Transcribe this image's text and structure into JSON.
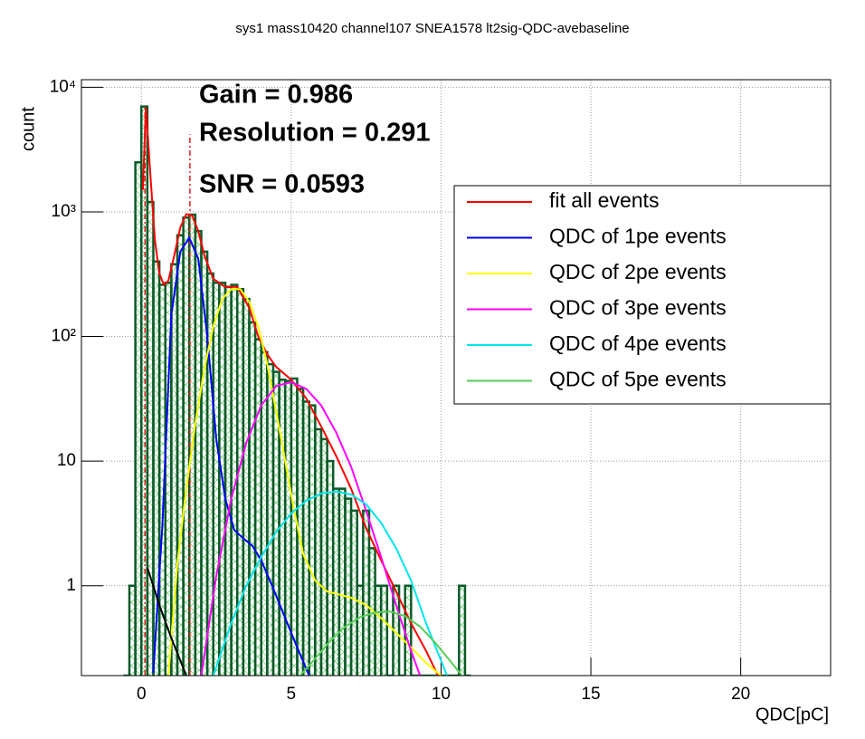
{
  "chart_data": {
    "type": "histogram",
    "title": "sys1  mass10420  channel107  SNEA1578  lt2sig-QDC-avebaseline",
    "x_label": "QDC[pC]",
    "y_label": "count",
    "annotations": [
      "Gain = 0.986",
      "Resolution = 0.291",
      "SNR = 0.0593"
    ],
    "xlim": [
      -2,
      23
    ],
    "ylim": [
      0.19,
      11500
    ],
    "log_y": true,
    "grid": true,
    "legend": "upper right",
    "xticks": [
      0,
      5,
      10,
      15,
      20
    ],
    "yticks": [
      1,
      10,
      {
        "value": 100,
        "label": "10²"
      },
      {
        "value": 1000,
        "label": "10³"
      },
      {
        "value": 10000,
        "label": "10⁴"
      }
    ],
    "histogram": {
      "color": "#0b5a2a",
      "hatch_color": "#7ed07e",
      "bins": [
        -0.6,
        -0.4,
        -0.2,
        0,
        0.2,
        0.4,
        0.6,
        0.8,
        1.0,
        1.2,
        1.4,
        1.6,
        1.8,
        2.0,
        2.2,
        2.4,
        2.6,
        2.8,
        3.0,
        3.2,
        3.4,
        3.6,
        3.8,
        4.0,
        4.2,
        4.4,
        4.6,
        4.8,
        5.0,
        5.2,
        5.4,
        5.6,
        5.8,
        6.0,
        6.2,
        6.4,
        6.6,
        6.8,
        7.0,
        7.2,
        7.4,
        7.6,
        7.8,
        8.0,
        8.2,
        8.4,
        8.6,
        8.8,
        9.0,
        9.2,
        9.4,
        9.6,
        9.8,
        10.0,
        10.2,
        10.4,
        10.6,
        10.8,
        11.0
      ],
      "counts": [
        0,
        1,
        2500,
        7000,
        1200,
        400,
        260,
        270,
        380,
        650,
        900,
        950,
        700,
        480,
        320,
        270,
        270,
        250,
        260,
        240,
        200,
        130,
        95,
        75,
        60,
        52,
        45,
        44,
        46,
        38,
        30,
        28,
        18,
        15,
        10,
        6,
        6,
        5,
        4,
        1,
        4,
        2,
        1,
        1,
        0,
        1,
        0,
        1,
        0,
        0,
        0,
        0,
        0,
        0,
        0,
        0,
        1,
        0
      ]
    },
    "vlines": {
      "color": "#e02020",
      "x": [
        0.12,
        1.62
      ],
      "values": [
        7000,
        4200
      ]
    },
    "series": [
      {
        "name": "fit all events",
        "color": "#ff0000",
        "x": [
          0.05,
          0.15,
          0.3,
          0.45,
          0.6,
          0.75,
          0.9,
          1.1,
          1.3,
          1.5,
          1.7,
          1.9,
          2.1,
          2.4,
          2.8,
          3.2,
          3.6,
          3.9,
          4.2,
          4.5,
          5.0,
          5.5,
          6.0,
          6.5,
          7.0,
          7.5,
          8.0,
          8.5,
          9.0,
          9.5,
          9.9
        ],
        "values": [
          1500,
          6900,
          2000,
          600,
          320,
          260,
          280,
          450,
          750,
          960,
          930,
          700,
          450,
          290,
          250,
          250,
          170,
          100,
          72,
          57,
          45,
          32,
          19,
          11,
          6,
          2.9,
          1.6,
          0.9,
          0.5,
          0.3,
          0.19
        ]
      },
      {
        "name": "QDC of 1pe events",
        "color": "#0000ff",
        "x": [
          0.4,
          0.55,
          0.7,
          1.0,
          1.3,
          1.6,
          1.9,
          2.2,
          2.5,
          2.8,
          3.1,
          3.4,
          3.7,
          4.0,
          4.4,
          4.8,
          5.2,
          5.6
        ],
        "values": [
          0.2,
          0.8,
          3,
          150,
          480,
          620,
          420,
          100,
          15,
          5,
          2.8,
          2.4,
          2.1,
          1.6,
          0.95,
          0.55,
          0.32,
          0.19
        ]
      },
      {
        "name": "QDC of 2pe events",
        "color": "#ffff00",
        "x": [
          0.9,
          1.2,
          1.5,
          1.8,
          2.1,
          2.4,
          2.7,
          3.0,
          3.3,
          3.6,
          3.9,
          4.2,
          4.5,
          4.8,
          5.1,
          5.4,
          5.8,
          6.2,
          6.6,
          7.0,
          7.5,
          8.0,
          8.5,
          9.0,
          9.5,
          10.0
        ],
        "values": [
          0.19,
          1.5,
          6,
          20,
          55,
          120,
          200,
          240,
          240,
          190,
          120,
          60,
          25,
          10,
          4,
          1.8,
          1.1,
          0.9,
          0.85,
          0.8,
          0.7,
          0.55,
          0.42,
          0.32,
          0.24,
          0.19
        ]
      },
      {
        "name": "QDC of 3pe events",
        "color": "#ff00ff",
        "x": [
          2.0,
          2.5,
          3.0,
          3.5,
          4.0,
          4.5,
          5.0,
          5.5,
          6.0,
          6.5,
          7.0,
          7.5,
          8.0,
          8.5,
          9.0,
          9.3
        ],
        "values": [
          0.19,
          1.2,
          5,
          14,
          28,
          40,
          43,
          38,
          28,
          17,
          9,
          4,
          1.7,
          0.7,
          0.3,
          0.19
        ]
      },
      {
        "name": "QDC of 4pe events",
        "color": "#00e5ee",
        "x": [
          2.4,
          3.0,
          3.5,
          4.0,
          4.5,
          5.0,
          5.5,
          6.0,
          6.5,
          7.0,
          7.5,
          8.0,
          8.5,
          9.0,
          9.5,
          10.2
        ],
        "values": [
          0.19,
          0.5,
          1.0,
          1.7,
          2.7,
          3.8,
          4.8,
          5.5,
          5.7,
          5.4,
          4.5,
          3.2,
          2.0,
          1.1,
          0.5,
          0.19
        ]
      },
      {
        "name": "QDC of 5pe events",
        "color": "#55cc55",
        "x": [
          5.3,
          5.8,
          6.3,
          6.8,
          7.3,
          7.8,
          8.3,
          8.8,
          9.3,
          9.8,
          10.3,
          10.7
        ],
        "values": [
          0.19,
          0.26,
          0.36,
          0.47,
          0.56,
          0.61,
          0.62,
          0.57,
          0.47,
          0.35,
          0.25,
          0.19
        ]
      },
      {
        "color": "#000000",
        "x": [
          0.2,
          0.6,
          1.0,
          1.5
        ],
        "values": [
          1.4,
          0.7,
          0.38,
          0.19
        ]
      }
    ]
  }
}
